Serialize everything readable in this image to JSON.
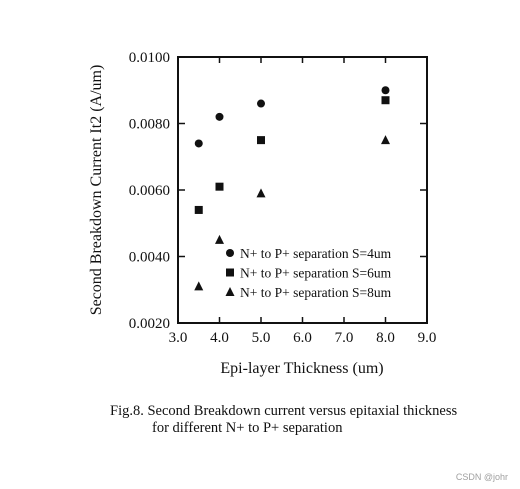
{
  "chart_data": {
    "type": "scatter",
    "xlabel": "Epi-layer Thickness (um)",
    "ylabel": "Second Breakdown Current It2 (A/um)",
    "xlim": [
      3.0,
      9.0
    ],
    "ylim": [
      0.002,
      0.01
    ],
    "x_ticks": [
      "3.0",
      "4.0",
      "5.0",
      "6.0",
      "7.0",
      "8.0",
      "9.0"
    ],
    "x_tick_values": [
      3,
      4,
      5,
      6,
      7,
      8,
      9
    ],
    "y_ticks": [
      "0.0020",
      "0.0040",
      "0.0060",
      "0.0080",
      "0.0100"
    ],
    "y_tick_values": [
      0.002,
      0.004,
      0.006,
      0.008,
      0.01
    ],
    "grid": false,
    "legend_position": "bottom-right",
    "series": [
      {
        "name": "N+ to P+ separation S=4um",
        "marker": "circle",
        "x": [
          3.5,
          4.0,
          5.0,
          8.0
        ],
        "y": [
          0.0074,
          0.0082,
          0.0086,
          0.009
        ]
      },
      {
        "name": "N+ to P+ separation S=6um",
        "marker": "square",
        "x": [
          3.5,
          4.0,
          5.0,
          8.0
        ],
        "y": [
          0.0054,
          0.0061,
          0.0075,
          0.0087
        ]
      },
      {
        "name": "N+ to P+ separation S=8um",
        "marker": "triangle",
        "x": [
          3.5,
          4.0,
          5.0,
          8.0
        ],
        "y": [
          0.0031,
          0.0045,
          0.0059,
          0.0075
        ]
      }
    ]
  },
  "caption": {
    "line1": "Fig.8. Second Breakdown current versus epitaxial thickness",
    "line2": "for different N+ to P+ separation"
  },
  "watermark": "CSDN @johr"
}
